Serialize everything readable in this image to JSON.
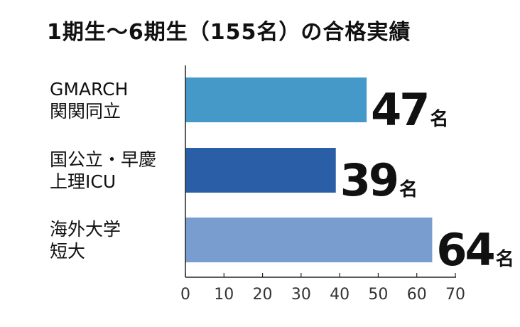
{
  "title": "1期生〜6期生（155名）の合格実績",
  "chart_data": {
    "type": "bar",
    "orientation": "horizontal",
    "categories": [
      [
        "GMARCH",
        "関関同立"
      ],
      [
        "国公立・早慶",
        "上理ICU"
      ],
      [
        "海外大学",
        "短大"
      ]
    ],
    "values": [
      47,
      39,
      64
    ],
    "unit": "名",
    "colors": [
      "#4599c9",
      "#2a5fa8",
      "#7a9dd0"
    ],
    "xlim": [
      0,
      70
    ],
    "xticks": [
      "0",
      "10",
      "20",
      "30",
      "40",
      "50",
      "60",
      "70"
    ],
    "xlabel": "",
    "ylabel": "",
    "grid": false,
    "legend": "none"
  }
}
